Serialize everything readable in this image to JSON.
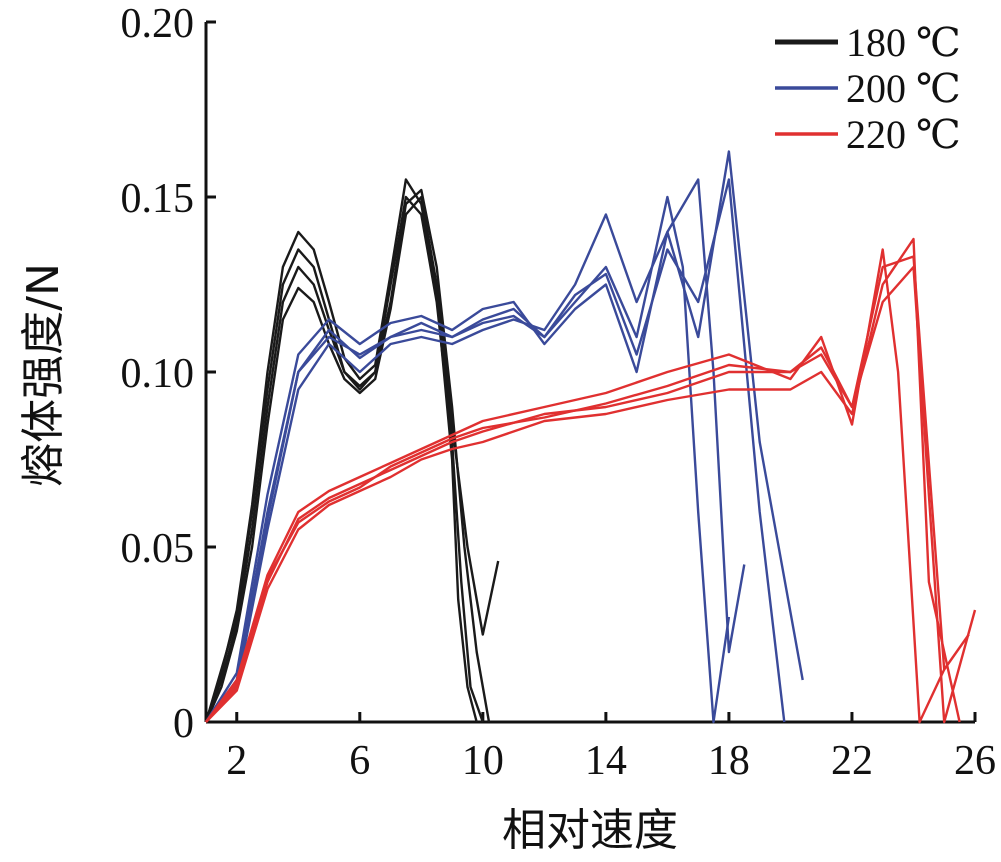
{
  "chart_data": {
    "type": "line",
    "title": "",
    "xlabel": "相对速度",
    "ylabel": "熔体强度/N",
    "xlim": [
      1,
      26
    ],
    "ylim": [
      0,
      0.2
    ],
    "xticks": [
      2,
      6,
      10,
      14,
      18,
      22,
      26
    ],
    "xtick_labels": [
      "2",
      "6",
      "10",
      "14",
      "18",
      "22",
      "26"
    ],
    "yticks": [
      0,
      0.05,
      0.1,
      0.15,
      0.2
    ],
    "ytick_labels": [
      "0",
      "0.05",
      "0.10",
      "0.15",
      "0.20"
    ],
    "grid": false,
    "legend_position": "top-right",
    "legend": [
      {
        "label": "180 ℃",
        "color": "#1a1a1a"
      },
      {
        "label": "200 ℃",
        "color": "#3a4a9a"
      },
      {
        "label": "220 ℃",
        "color": "#e03030"
      }
    ],
    "series": [
      {
        "name": "180 ℃",
        "color": "#1a1a1a",
        "curves": [
          {
            "x": [
              1,
              1.5,
              2,
              2.5,
              3,
              3.5,
              4,
              4.5,
              5,
              5.5,
              6,
              6.5,
              7,
              7.5,
              8,
              8.5,
              9,
              9.3,
              9.6,
              10
            ],
            "y": [
              0,
              0.015,
              0.03,
              0.06,
              0.095,
              0.125,
              0.135,
              0.13,
              0.115,
              0.1,
              0.095,
              0.1,
              0.125,
              0.15,
              0.145,
              0.12,
              0.08,
              0.04,
              0.01,
              0.0
            ]
          },
          {
            "x": [
              1,
              1.5,
              2,
              2.5,
              3,
              3.5,
              4,
              4.5,
              5,
              5.5,
              6,
              6.5,
              7,
              7.5,
              8,
              8.5,
              9,
              9.4,
              9.8,
              10.2
            ],
            "y": [
              0,
              0.012,
              0.028,
              0.055,
              0.09,
              0.12,
              0.13,
              0.125,
              0.112,
              0.1,
              0.096,
              0.1,
              0.12,
              0.148,
              0.152,
              0.13,
              0.09,
              0.05,
              0.02,
              0.0
            ]
          },
          {
            "x": [
              1,
              1.5,
              2,
              2.5,
              3,
              3.5,
              4,
              4.5,
              5,
              5.5,
              6,
              6.5,
              7,
              7.5,
              8,
              8.5,
              9,
              9.5,
              10,
              10.5
            ],
            "y": [
              0,
              0.01,
              0.026,
              0.05,
              0.085,
              0.115,
              0.124,
              0.12,
              0.108,
              0.098,
              0.094,
              0.098,
              0.118,
              0.145,
              0.15,
              0.125,
              0.085,
              0.05,
              0.025,
              0.046
            ]
          },
          {
            "x": [
              1,
              1.5,
              2,
              2.5,
              3,
              3.5,
              4,
              4.5,
              5,
              5.5,
              6,
              6.5,
              7,
              7.5,
              8,
              8.5,
              9,
              9.2,
              9.5,
              9.8
            ],
            "y": [
              0,
              0.014,
              0.032,
              0.062,
              0.1,
              0.13,
              0.14,
              0.135,
              0.12,
              0.104,
              0.098,
              0.102,
              0.128,
              0.155,
              0.148,
              0.122,
              0.075,
              0.035,
              0.01,
              0.0
            ]
          }
        ]
      },
      {
        "name": "200 ℃",
        "color": "#3a4a9a",
        "curves": [
          {
            "x": [
              1,
              2,
              3,
              4,
              5,
              6,
              7,
              8,
              9,
              10,
              11,
              12,
              13,
              14,
              15,
              16,
              16.5,
              17,
              17.5,
              18
            ],
            "y": [
              0,
              0.012,
              0.06,
              0.1,
              0.11,
              0.105,
              0.11,
              0.112,
              0.11,
              0.115,
              0.118,
              0.11,
              0.12,
              0.13,
              0.11,
              0.15,
              0.13,
              0.06,
              0.0,
              0.03
            ]
          },
          {
            "x": [
              1,
              2,
              3,
              4,
              5,
              6,
              7,
              8,
              9,
              10,
              11,
              12,
              13,
              14,
              15,
              16,
              17,
              17.5,
              18,
              18.5
            ],
            "y": [
              0,
              0.01,
              0.055,
              0.095,
              0.108,
              0.1,
              0.108,
              0.11,
              0.108,
              0.112,
              0.115,
              0.112,
              0.125,
              0.145,
              0.12,
              0.14,
              0.155,
              0.1,
              0.02,
              0.045
            ]
          },
          {
            "x": [
              1,
              2,
              3,
              4,
              5,
              6,
              7,
              8,
              9,
              10,
              11,
              12,
              13,
              14,
              15,
              16,
              17,
              18,
              19,
              20.4
            ],
            "y": [
              0,
              0.014,
              0.065,
              0.105,
              0.115,
              0.108,
              0.114,
              0.116,
              0.112,
              0.118,
              0.12,
              0.108,
              0.118,
              0.125,
              0.1,
              0.14,
              0.11,
              0.163,
              0.08,
              0.012
            ]
          },
          {
            "x": [
              1,
              2,
              3,
              4,
              5,
              6,
              7,
              8,
              9,
              10,
              11,
              12,
              13,
              14,
              15,
              16,
              17,
              18,
              19,
              19.8
            ],
            "y": [
              0,
              0.011,
              0.058,
              0.1,
              0.112,
              0.104,
              0.11,
              0.114,
              0.11,
              0.114,
              0.116,
              0.11,
              0.122,
              0.128,
              0.105,
              0.135,
              0.12,
              0.155,
              0.06,
              0.0
            ]
          }
        ]
      },
      {
        "name": "220 ℃",
        "color": "#e03030",
        "curves": [
          {
            "x": [
              1,
              2,
              3,
              4,
              5,
              6,
              7,
              8,
              9,
              10,
              12,
              14,
              16,
              18,
              20,
              21,
              22,
              23,
              24,
              25,
              26
            ],
            "y": [
              0,
              0.01,
              0.04,
              0.058,
              0.064,
              0.068,
              0.072,
              0.076,
              0.08,
              0.083,
              0.088,
              0.09,
              0.094,
              0.1,
              0.1,
              0.105,
              0.09,
              0.12,
              0.13,
              0.0,
              0.032
            ]
          },
          {
            "x": [
              1,
              2,
              3,
              4,
              5,
              6,
              7,
              8,
              9,
              10,
              12,
              14,
              16,
              18,
              20,
              21,
              22,
              23,
              23.5,
              24.2,
              25
            ],
            "y": [
              0,
              0.012,
              0.042,
              0.06,
              0.066,
              0.07,
              0.074,
              0.078,
              0.082,
              0.086,
              0.09,
              0.094,
              0.1,
              0.105,
              0.098,
              0.11,
              0.085,
              0.135,
              0.1,
              0.0,
              0.015
            ]
          },
          {
            "x": [
              1,
              2,
              3,
              4,
              5,
              6,
              7,
              8,
              9,
              10,
              12,
              14,
              16,
              18,
              20,
              21,
              22,
              23,
              24,
              24.5,
              25.5
            ],
            "y": [
              0,
              0.009,
              0.038,
              0.055,
              0.062,
              0.066,
              0.07,
              0.075,
              0.078,
              0.08,
              0.086,
              0.088,
              0.092,
              0.095,
              0.095,
              0.1,
              0.088,
              0.125,
              0.138,
              0.04,
              0.0
            ]
          },
          {
            "x": [
              1,
              2,
              3,
              4,
              5,
              6,
              7,
              8,
              9,
              10,
              12,
              14,
              16,
              18,
              20,
              21,
              22,
              23,
              24,
              25,
              25.8
            ],
            "y": [
              0,
              0.011,
              0.041,
              0.057,
              0.063,
              0.067,
              0.073,
              0.077,
              0.081,
              0.084,
              0.087,
              0.091,
              0.096,
              0.102,
              0.1,
              0.107,
              0.09,
              0.13,
              0.133,
              0.015,
              0.025
            ]
          }
        ]
      }
    ]
  }
}
